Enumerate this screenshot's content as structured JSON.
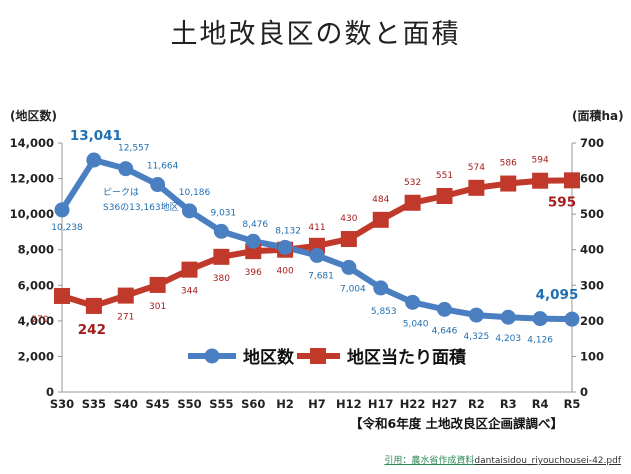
{
  "title": "土地改良区の数と面積",
  "source_note": "【令和6年度 土地改良区企画課調べ】",
  "citation": {
    "label": "引用：農水省作成資料",
    "file": "dantaisidou_riyouchousei-42.pdf"
  },
  "colors": {
    "blue": "#4a7fc1",
    "red": "#c0392b",
    "blue_label": "#1f6fb2",
    "red_label": "#a61c1c"
  },
  "chart_data": {
    "type": "line",
    "categories": [
      "S30",
      "S35",
      "S40",
      "S45",
      "S50",
      "S55",
      "S60",
      "H2",
      "H7",
      "H12",
      "H17",
      "H22",
      "H27",
      "R2",
      "R3",
      "R4",
      "R5"
    ],
    "y_left": {
      "label": "(地区数)",
      "min": 0,
      "max": 14000,
      "ticks": [
        "0",
        "2,000",
        "4,000",
        "6,000",
        "8,000",
        "10,000",
        "12,000",
        "14,000"
      ]
    },
    "y_right": {
      "label": "(面積ha)",
      "min": 0,
      "max": 700,
      "ticks": [
        "0",
        "100",
        "200",
        "300",
        "400",
        "500",
        "600",
        "700"
      ]
    },
    "series": [
      {
        "name": "地区数",
        "axis": "left",
        "color": "#4a7fc1",
        "values": [
          10238,
          13041,
          12557,
          11664,
          10186,
          9031,
          8476,
          8132,
          7681,
          7004,
          5853,
          5040,
          4646,
          4325,
          4203,
          4126,
          4095
        ],
        "labels": [
          "10,238",
          "13,041",
          "12,557",
          "11,664",
          "10,186",
          "9,031",
          "8,476",
          "8,132",
          "7,681",
          "7,004",
          "5,853",
          "5,040",
          "4,646",
          "4,325",
          "4,203",
          "4,126",
          "4,095"
        ]
      },
      {
        "name": "地区当たり面積",
        "axis": "right",
        "color": "#c0392b",
        "values": [
          270,
          242,
          271,
          301,
          344,
          380,
          396,
          400,
          411,
          430,
          484,
          532,
          551,
          574,
          586,
          594,
          595
        ],
        "labels": [
          "270",
          "242",
          "271",
          "301",
          "344",
          "380",
          "396",
          "400",
          "411",
          "430",
          "484",
          "532",
          "551",
          "574",
          "586",
          "594",
          "595"
        ]
      }
    ],
    "annotation": {
      "line1": "ピークは",
      "line2": "S36の13,163地区"
    },
    "grid": false,
    "legend": "center"
  }
}
